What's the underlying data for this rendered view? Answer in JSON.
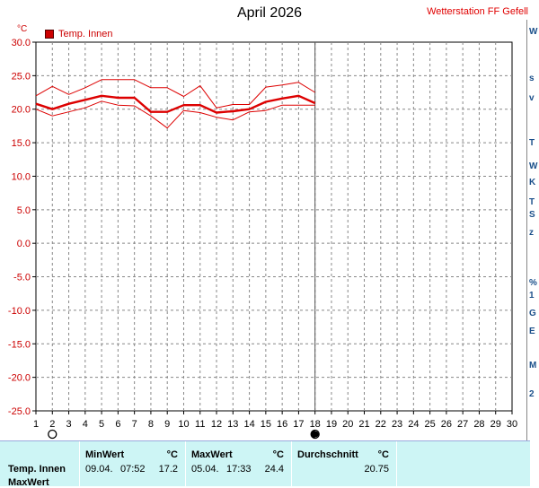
{
  "header": {
    "title": "April 2026",
    "station": "Wetterstation FF Gefell",
    "unit": "°C"
  },
  "legend": {
    "label": "Temp. Innen",
    "color": "#cc0000"
  },
  "chart_data": {
    "type": "line",
    "title": "April 2026",
    "ylabel": "°C",
    "ylim": [
      -25,
      30
    ],
    "xlim": [
      1,
      30
    ],
    "yticks": [
      "30.0",
      "25.0",
      "20.0",
      "15.0",
      "10.0",
      "5.0",
      "0.0",
      "-5.0",
      "-10.0",
      "-15.0",
      "-20.0",
      "-25.0"
    ],
    "xticks": [
      "1",
      "2",
      "3",
      "4",
      "5",
      "6",
      "7",
      "8",
      "9",
      "10",
      "11",
      "12",
      "13",
      "14",
      "15",
      "16",
      "17",
      "18",
      "19",
      "20",
      "21",
      "22",
      "23",
      "24",
      "25",
      "26",
      "27",
      "28",
      "29",
      "30"
    ],
    "grid": true,
    "current_day": 18,
    "series": [
      {
        "name": "Temp. Innen",
        "role": "avg",
        "x": [
          1,
          2,
          3,
          4,
          5,
          6,
          7,
          8,
          9,
          10,
          11,
          12,
          13,
          14,
          15,
          16,
          17,
          18
        ],
        "values": [
          20.8,
          20.0,
          20.8,
          21.4,
          22.0,
          21.7,
          21.7,
          19.6,
          19.6,
          20.6,
          20.6,
          19.5,
          19.7,
          20.0,
          21.1,
          21.6,
          22.0,
          20.9
        ]
      },
      {
        "role": "max",
        "x": [
          1,
          2,
          3,
          4,
          5,
          6,
          7,
          8,
          9,
          10,
          11,
          12,
          13,
          14,
          15,
          16,
          17,
          18
        ],
        "values": [
          22.0,
          23.4,
          22.2,
          23.2,
          24.4,
          24.4,
          24.4,
          23.2,
          23.2,
          21.9,
          23.5,
          20.2,
          20.7,
          20.7,
          23.3,
          23.6,
          24.0,
          22.5
        ]
      },
      {
        "role": "min",
        "x": [
          1,
          2,
          3,
          4,
          5,
          6,
          7,
          8,
          9,
          10,
          11,
          12,
          13,
          14,
          15,
          16,
          17,
          18
        ],
        "values": [
          20.0,
          19.0,
          19.6,
          20.2,
          21.2,
          20.6,
          20.5,
          19.0,
          17.2,
          19.8,
          19.5,
          18.8,
          18.4,
          19.6,
          19.8,
          20.6,
          20.6,
          20.6
        ]
      }
    ],
    "markers": [
      {
        "day": 2,
        "symbol": "empty-circle"
      },
      {
        "day": 18,
        "symbol": "half-filled-circle"
      }
    ]
  },
  "stats": {
    "row_label": "Temp. Innen",
    "row2_label": "MaxWert",
    "min_header": "MinWert",
    "min_unit": "°C",
    "min_date": "09.04.",
    "min_time": "07:52",
    "min_value": "17.2",
    "max_header": "MaxWert",
    "max_unit": "°C",
    "max_date": "05.04.",
    "max_time": "17:33",
    "max_value": "24.4",
    "avg_header": "Durchschnitt",
    "avg_unit": "°C",
    "avg_value": "20.75"
  },
  "side_fragments": [
    "W",
    "s",
    "v",
    "T",
    "W",
    "K",
    "T",
    "S",
    "z",
    "%",
    "1",
    "G",
    "E",
    "M",
    "2"
  ]
}
